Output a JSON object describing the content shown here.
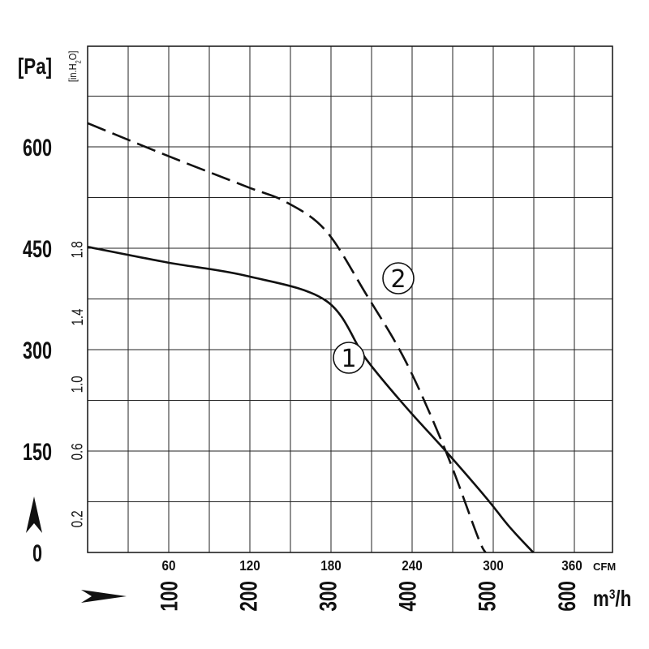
{
  "chart_data": {
    "type": "line",
    "x_primary": {
      "unit": "CFM",
      "lim": [
        0,
        388.2
      ],
      "ticks": [
        60,
        120,
        180,
        240,
        300,
        360
      ],
      "tick_labels": [
        "60",
        "120",
        "180",
        "240",
        "300",
        "360"
      ]
    },
    "x_secondary": {
      "unit": "m3/h",
      "unit_label_main": "m",
      "unit_label_sup": "3",
      "unit_label_tail": "/h",
      "ticks": [
        100,
        200,
        300,
        400,
        500,
        600
      ],
      "tick_labels": [
        "100",
        "200",
        "300",
        "400",
        "500",
        "600"
      ]
    },
    "y_primary": {
      "unit": "[Pa]",
      "lim": [
        0,
        745
      ],
      "ticks": [
        0,
        150,
        300,
        450,
        600
      ],
      "tick_labels": [
        "0",
        "150",
        "300",
        "450",
        "600"
      ]
    },
    "y_secondary": {
      "unit": "[in.H2O]",
      "unit_label_main": "[in.H",
      "unit_label_sub": "2",
      "unit_label_tail": "O]",
      "ticks": [
        0.2,
        0.6,
        1.0,
        1.4,
        1.8
      ],
      "tick_labels": [
        "0.2",
        "0.6",
        "1.0",
        "1.4",
        "1.8"
      ]
    },
    "grid": true,
    "series": [
      {
        "marker_label": "1",
        "style": "solid",
        "x_unit": "m3/h",
        "y_unit": "Pa",
        "x": [
          0,
          100,
          200,
          300,
          350,
          400,
          450,
          500,
          530,
          560
        ],
        "y": [
          452,
          429,
          409,
          372,
          286,
          215,
          150,
          82,
          38,
          0
        ]
      },
      {
        "marker_label": "2",
        "style": "dashed",
        "x_unit": "m3/h",
        "y_unit": "Pa",
        "x": [
          0,
          100,
          200,
          250,
          300,
          350,
          400,
          450,
          490,
          500
        ],
        "y": [
          635,
          587,
          541,
          518,
          475,
          382,
          282,
          150,
          24,
          0
        ]
      }
    ],
    "annotations": [
      "1",
      "2"
    ]
  }
}
